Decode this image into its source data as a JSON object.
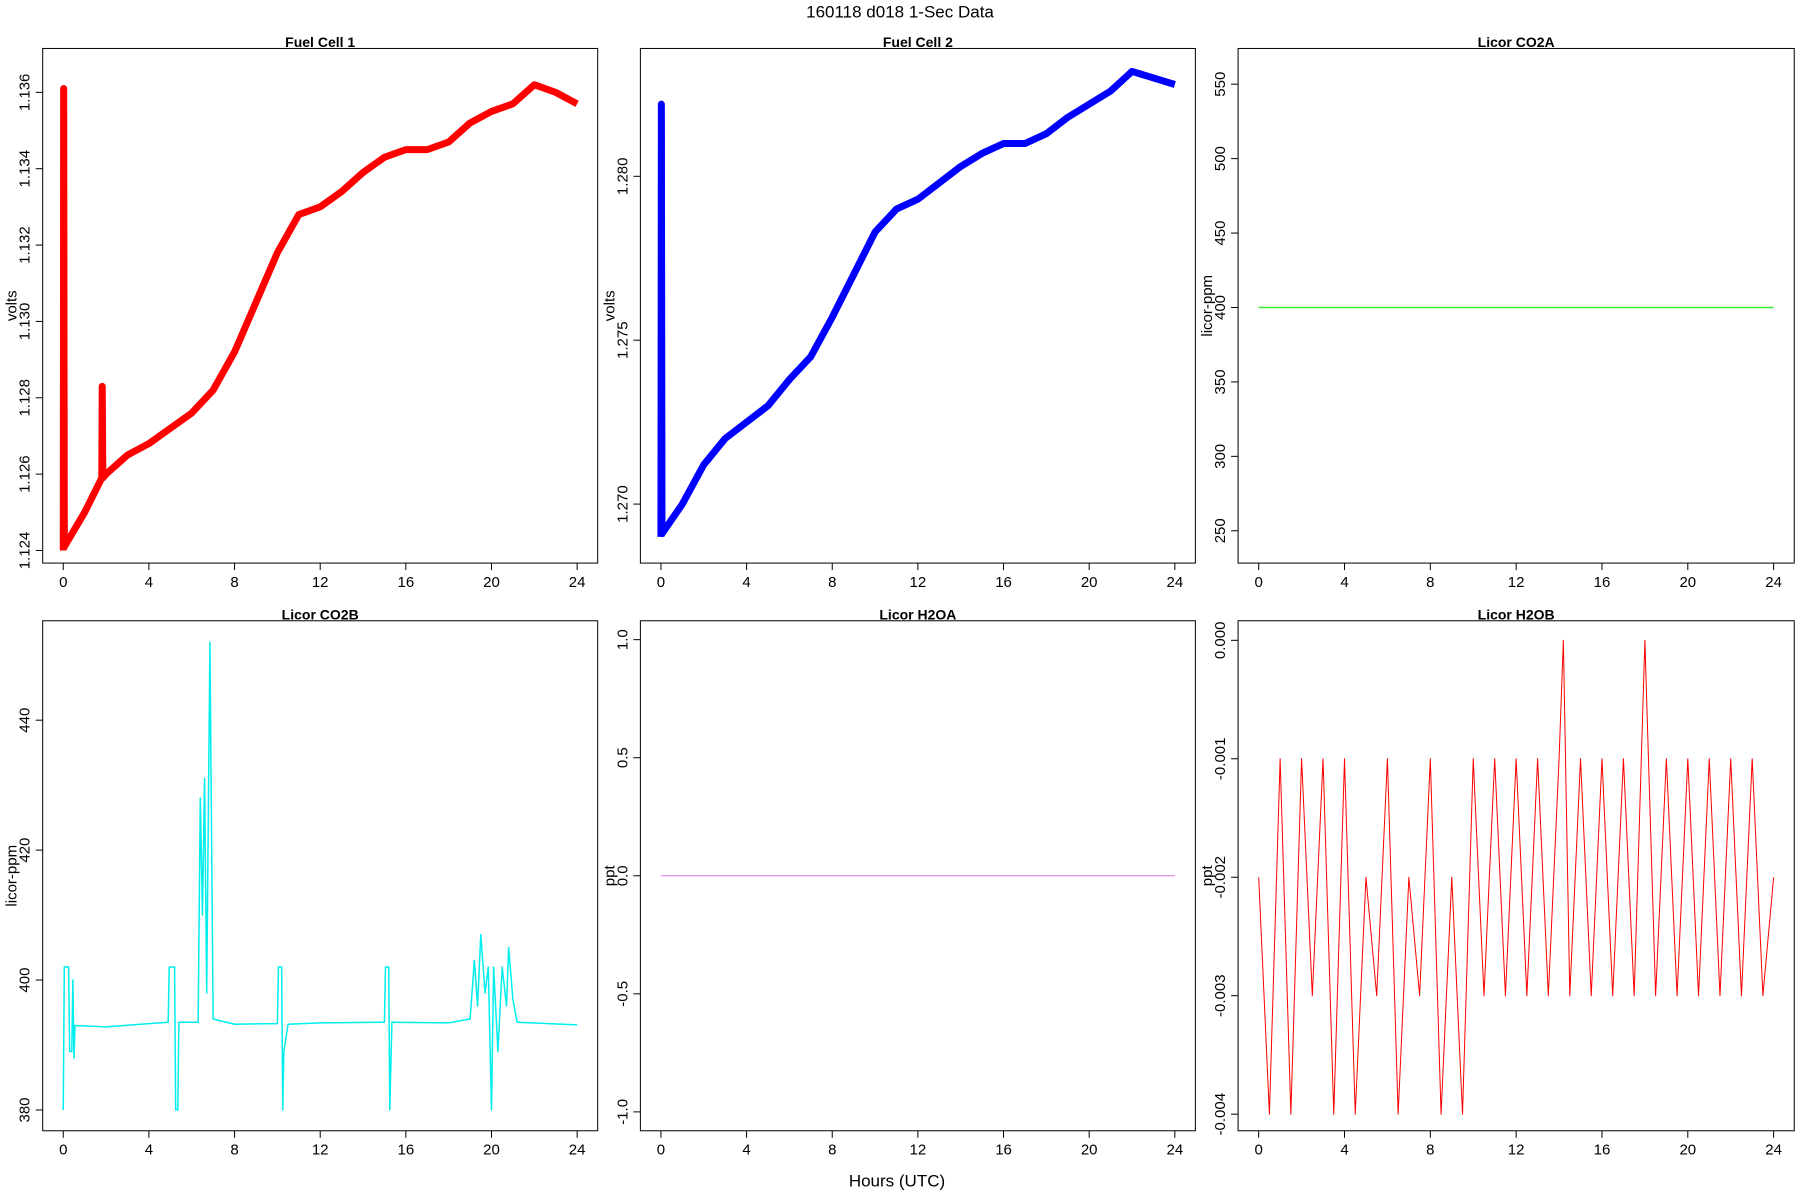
{
  "title": "160118   d018   1-Sec Data",
  "xlabel": "Hours (UTC)",
  "chart_data": [
    {
      "type": "line",
      "title": "Fuel Cell 1",
      "ylabel": "volts",
      "color": "#ff0000",
      "x": [
        0,
        0.02,
        0.05,
        1,
        1.8,
        1.82,
        1.85,
        2,
        3,
        4,
        5,
        6,
        7,
        8,
        9,
        10,
        11,
        12,
        13,
        14,
        15,
        16,
        17,
        18,
        19,
        20,
        21,
        22,
        23,
        24
      ],
      "values": [
        1.124,
        1.1361,
        1.1241,
        1.125,
        1.1259,
        1.1283,
        1.1259,
        1.126,
        1.1265,
        1.1268,
        1.1272,
        1.1276,
        1.1282,
        1.1292,
        1.1305,
        1.1318,
        1.1328,
        1.133,
        1.1334,
        1.1339,
        1.1343,
        1.1345,
        1.1345,
        1.1347,
        1.1352,
        1.1355,
        1.1357,
        1.1362,
        1.136,
        1.1357
      ],
      "xlim": [
        -0.96,
        24.96
      ],
      "ylim": [
        1.12367,
        1.13715
      ],
      "xticks": [
        0,
        4,
        8,
        12,
        16,
        20,
        24
      ],
      "yticks": [
        {
          "value": 1.124,
          "label": "1.124"
        },
        {
          "value": 1.126,
          "label": "1.126"
        },
        {
          "value": 1.128,
          "label": "1.128"
        },
        {
          "value": 1.13,
          "label": "1.130"
        },
        {
          "value": 1.132,
          "label": "1.132"
        },
        {
          "value": 1.134,
          "label": "1.134"
        },
        {
          "value": 1.136,
          "label": "1.136"
        }
      ]
    },
    {
      "type": "line",
      "title": "Fuel Cell 2",
      "ylabel": "volts",
      "color": "#0000ff",
      "x": [
        0,
        0.02,
        0.05,
        1,
        2,
        3,
        4,
        5,
        6,
        7,
        8,
        9,
        10,
        11,
        12,
        13,
        14,
        15,
        16,
        17,
        18,
        19,
        20,
        21,
        22,
        23,
        24
      ],
      "values": [
        1.269,
        1.2822,
        1.2691,
        1.27,
        1.2712,
        1.272,
        1.2725,
        1.273,
        1.2738,
        1.2745,
        1.2757,
        1.277,
        1.2783,
        1.279,
        1.2793,
        1.2798,
        1.2803,
        1.2807,
        1.281,
        1.281,
        1.2813,
        1.2818,
        1.2822,
        1.2826,
        1.2832,
        1.283,
        1.2828
      ],
      "xlim": [
        -0.96,
        24.96
      ],
      "ylim": [
        1.2682,
        1.2839
      ],
      "xticks": [
        0,
        4,
        8,
        12,
        16,
        20,
        24
      ],
      "yticks": [
        {
          "value": 1.27,
          "label": "1.270"
        },
        {
          "value": 1.275,
          "label": "1.275"
        },
        {
          "value": 1.28,
          "label": "1.280"
        }
      ]
    },
    {
      "type": "line",
      "title": "Licor CO2A",
      "ylabel": "licor-ppm",
      "color": "#33ee33",
      "x": [
        0,
        24
      ],
      "values": [
        400,
        400
      ],
      "xlim": [
        -0.96,
        24.96
      ],
      "ylim": [
        228.3,
        574
      ],
      "xticks": [
        0,
        4,
        8,
        12,
        16,
        20,
        24
      ],
      "yticks": [
        250,
        300,
        350,
        400,
        450,
        500,
        550
      ]
    },
    {
      "type": "line",
      "title": "Licor CO2B",
      "ylabel": "licor-ppm",
      "color": "#00eeee",
      "x": [
        0,
        0.05,
        0.25,
        0.3,
        0.4,
        0.45,
        0.5,
        0.55,
        2,
        4.9,
        4.95,
        5.2,
        5.25,
        5.35,
        5.4,
        6.3,
        6.4,
        6.5,
        6.6,
        6.7,
        6.85,
        7.0,
        8,
        10,
        10.05,
        10.2,
        10.25,
        10.3,
        10.5,
        12,
        15,
        15.05,
        15.2,
        15.25,
        15.35,
        18,
        19,
        19.2,
        19.35,
        19.5,
        19.7,
        19.85,
        20,
        20.1,
        20.3,
        20.5,
        20.7,
        20.8,
        21,
        21.2,
        24
      ],
      "values": [
        380,
        402,
        402,
        389,
        389,
        400,
        388,
        393,
        392.8,
        393.5,
        402,
        402,
        380,
        380,
        393.5,
        393.5,
        428,
        410,
        431,
        398,
        452,
        394,
        393.2,
        393.3,
        402,
        402,
        380,
        389,
        393.2,
        393.4,
        393.5,
        402,
        402,
        380,
        393.5,
        393.4,
        394,
        403,
        396,
        407,
        398,
        402,
        380,
        402,
        389,
        402,
        396,
        405,
        397,
        393.5,
        393.1
      ],
      "xlim": [
        -0.96,
        24.96
      ],
      "ylim": [
        376.8,
        455.3
      ],
      "xticks": [
        0,
        4,
        8,
        12,
        16,
        20,
        24
      ],
      "yticks": [
        380,
        400,
        420,
        440
      ]
    },
    {
      "type": "line",
      "title": "Licor H2OA",
      "ylabel": "ppt",
      "color": "#dd77dd",
      "x": [
        0,
        24
      ],
      "values": [
        0,
        0
      ],
      "xlim": [
        -0.96,
        24.96
      ],
      "ylim": [
        -1.08,
        1.08
      ],
      "xticks": [
        0,
        4,
        8,
        12,
        16,
        20,
        24
      ],
      "yticks": [
        {
          "value": -1,
          "label": "-1.0"
        },
        {
          "value": -0.5,
          "label": "-0.5"
        },
        {
          "value": 0,
          "label": "0.0"
        },
        {
          "value": 0.5,
          "label": "0.5"
        },
        {
          "value": 1,
          "label": "1.0"
        }
      ]
    },
    {
      "type": "line",
      "title": "Licor H2OB",
      "ylabel": "ppt",
      "color": "#ff0000",
      "x": [
        0,
        0.5,
        1,
        1.5,
        2,
        2.5,
        3,
        3.5,
        4,
        4.5,
        5,
        5.5,
        6,
        6.5,
        7,
        7.5,
        8,
        8.5,
        9,
        9.5,
        10,
        10.5,
        11,
        11.5,
        12,
        12.5,
        13,
        13.5,
        14,
        14.2,
        14.5,
        15,
        15.5,
        16,
        16.5,
        17,
        17.5,
        18,
        18.5,
        19,
        19.5,
        20,
        20.5,
        21,
        21.5,
        22,
        22.5,
        23,
        23.5,
        24
      ],
      "values": [
        -0.002,
        -0.004,
        -0.001,
        -0.004,
        -0.001,
        -0.003,
        -0.001,
        -0.004,
        -0.001,
        -0.004,
        -0.002,
        -0.003,
        -0.001,
        -0.004,
        -0.002,
        -0.003,
        -0.001,
        -0.004,
        -0.002,
        -0.004,
        -0.001,
        -0.003,
        -0.001,
        -0.003,
        -0.001,
        -0.003,
        -0.001,
        -0.003,
        -0.001,
        0,
        -0.003,
        -0.001,
        -0.003,
        -0.001,
        -0.003,
        -0.001,
        -0.003,
        0,
        -0.003,
        -0.001,
        -0.003,
        -0.001,
        -0.003,
        -0.001,
        -0.003,
        -0.001,
        -0.003,
        -0.001,
        -0.003,
        -0.002
      ],
      "xlim": [
        -0.96,
        24.96
      ],
      "ylim": [
        -0.00414,
        0.000165
      ],
      "xticks": [
        0,
        4,
        8,
        12,
        16,
        20,
        24
      ],
      "yticks": [
        {
          "value": -0.004,
          "label": "-0.004"
        },
        {
          "value": -0.003,
          "label": "-0.003"
        },
        {
          "value": -0.002,
          "label": "-0.002"
        },
        {
          "value": -0.001,
          "label": "-0.001"
        },
        {
          "value": 0,
          "label": "0.000"
        }
      ]
    }
  ]
}
